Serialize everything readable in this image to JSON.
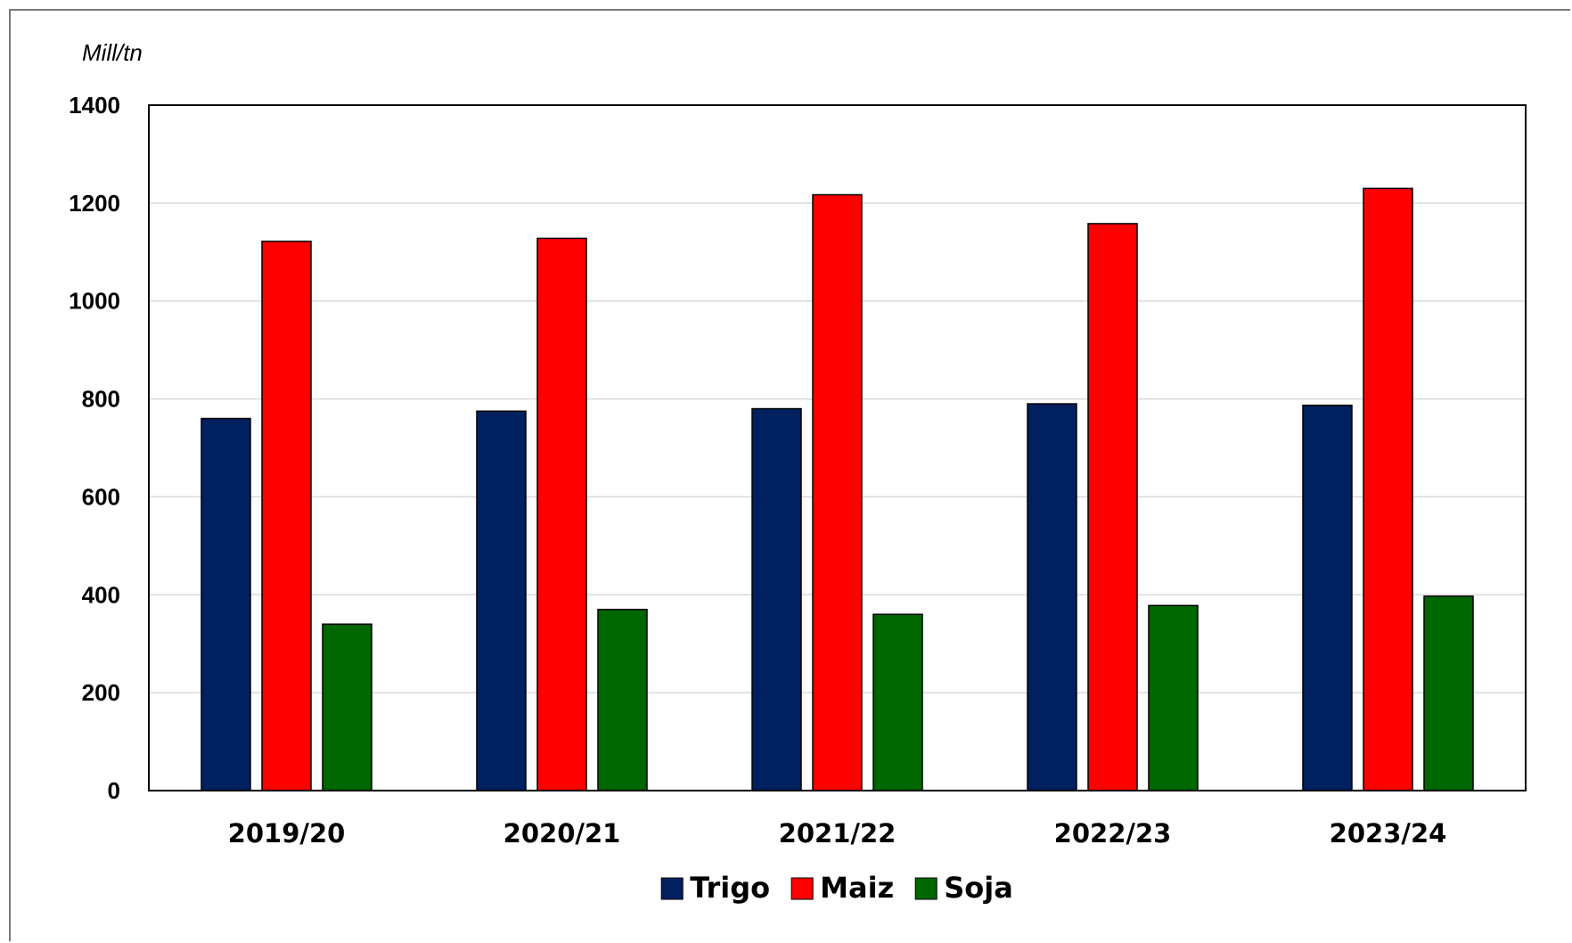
{
  "chart_data": {
    "type": "bar",
    "ylabel": "Mill/tn",
    "ylim": [
      0,
      1400
    ],
    "yticks": [
      0,
      200,
      400,
      600,
      800,
      1000,
      1200,
      1400
    ],
    "grid": true,
    "legend_position": "bottom",
    "categories": [
      "2019/20",
      "2020/21",
      "2021/22",
      "2022/23",
      "2023/24"
    ],
    "series": [
      {
        "name": "Trigo",
        "color": "#002060",
        "values": [
          760,
          775,
          780,
          790,
          787
        ]
      },
      {
        "name": "Maiz",
        "color": "#ff0000",
        "values": [
          1122,
          1128,
          1217,
          1158,
          1230
        ]
      },
      {
        "name": "Soja",
        "color": "#006600",
        "values": [
          340,
          370,
          360,
          378,
          397
        ]
      }
    ]
  }
}
